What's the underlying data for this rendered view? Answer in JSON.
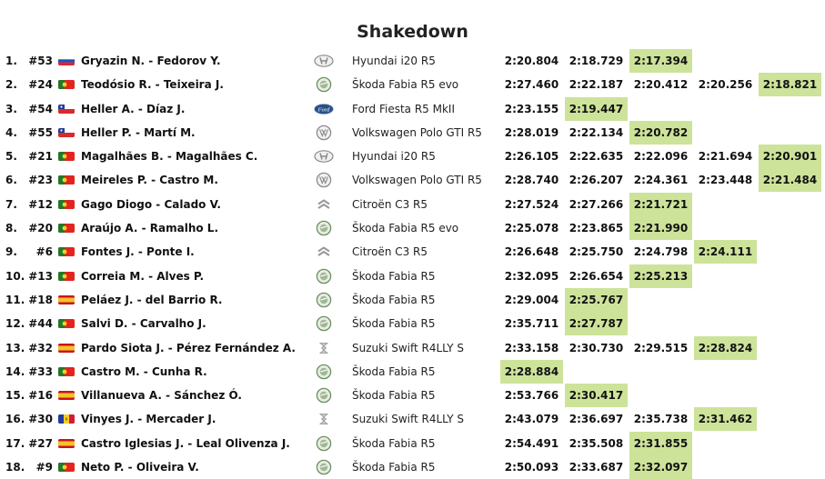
{
  "title": "Shakedown",
  "colors": {
    "best_time": "#cde39a"
  },
  "rows": [
    {
      "pos": "1.",
      "num": "#53",
      "flag": "russia",
      "crew": "Gryazin N. - Fedorov Y.",
      "brand": "hyundai",
      "car": "Hyundai i20 R5",
      "times": [
        "2:20.804",
        "2:18.729",
        "2:17.394"
      ],
      "best": 2
    },
    {
      "pos": "2.",
      "num": "#24",
      "flag": "portugal",
      "crew": "Teodósio R. - Teixeira J.",
      "brand": "skoda",
      "car": "Škoda Fabia R5 evo",
      "times": [
        "2:27.460",
        "2:22.187",
        "2:20.412",
        "2:20.256",
        "2:18.821"
      ],
      "best": 4
    },
    {
      "pos": "3.",
      "num": "#54",
      "flag": "chile",
      "crew": "Heller A. - Díaz J.",
      "brand": "ford",
      "car": "Ford Fiesta R5 MkII",
      "times": [
        "2:23.155",
        "2:19.447"
      ],
      "best": 1
    },
    {
      "pos": "4.",
      "num": "#55",
      "flag": "chile",
      "crew": "Heller P. - Martí M.",
      "brand": "volkswagen",
      "car": "Volkswagen Polo GTI R5",
      "times": [
        "2:28.019",
        "2:22.134",
        "2:20.782"
      ],
      "best": 2
    },
    {
      "pos": "5.",
      "num": "#21",
      "flag": "portugal",
      "crew": "Magalhães B. - Magalhães C.",
      "brand": "hyundai",
      "car": "Hyundai i20 R5",
      "times": [
        "2:26.105",
        "2:22.635",
        "2:22.096",
        "2:21.694",
        "2:20.901"
      ],
      "best": 4
    },
    {
      "pos": "6.",
      "num": "#23",
      "flag": "portugal",
      "crew": "Meireles P. - Castro M.",
      "brand": "volkswagen",
      "car": "Volkswagen Polo GTI R5",
      "times": [
        "2:28.740",
        "2:26.207",
        "2:24.361",
        "2:23.448",
        "2:21.484"
      ],
      "best": 4
    },
    {
      "pos": "7.",
      "num": "#12",
      "flag": "portugal",
      "crew": "Gago Diogo - Calado V.",
      "brand": "citroen",
      "car": "Citroën C3 R5",
      "times": [
        "2:27.524",
        "2:27.266",
        "2:21.721"
      ],
      "best": 2
    },
    {
      "pos": "8.",
      "num": "#20",
      "flag": "portugal",
      "crew": "Araújo A. - Ramalho L.",
      "brand": "skoda",
      "car": "Škoda Fabia R5 evo",
      "times": [
        "2:25.078",
        "2:23.865",
        "2:21.990"
      ],
      "best": 2
    },
    {
      "pos": "9.",
      "num": "#6",
      "flag": "portugal",
      "crew": "Fontes J. - Ponte I.",
      "brand": "citroen",
      "car": "Citroën C3 R5",
      "times": [
        "2:26.648",
        "2:25.750",
        "2:24.798",
        "2:24.111"
      ],
      "best": 3
    },
    {
      "pos": "10.",
      "num": "#13",
      "flag": "portugal",
      "crew": "Correia M. - Alves P.",
      "brand": "skoda",
      "car": "Škoda Fabia R5",
      "times": [
        "2:32.095",
        "2:26.654",
        "2:25.213"
      ],
      "best": 2
    },
    {
      "pos": "11.",
      "num": "#18",
      "flag": "spain",
      "crew": "Peláez J. - del Barrio R.",
      "brand": "skoda",
      "car": "Škoda Fabia R5",
      "times": [
        "2:29.004",
        "2:25.767"
      ],
      "best": 1
    },
    {
      "pos": "12.",
      "num": "#44",
      "flag": "portugal",
      "crew": "Salvi D. - Carvalho J.",
      "brand": "skoda",
      "car": "Škoda Fabia R5",
      "times": [
        "2:35.711",
        "2:27.787"
      ],
      "best": 1
    },
    {
      "pos": "13.",
      "num": "#32",
      "flag": "spain",
      "crew": "Pardo Siota J. - Pérez Fernández A.",
      "brand": "suzuki",
      "car": "Suzuki Swift R4LLY S",
      "times": [
        "2:33.158",
        "2:30.730",
        "2:29.515",
        "2:28.824"
      ],
      "best": 3
    },
    {
      "pos": "14.",
      "num": "#33",
      "flag": "portugal",
      "crew": "Castro M. - Cunha R.",
      "brand": "skoda",
      "car": "Škoda Fabia R5",
      "times": [
        "2:28.884"
      ],
      "best": 0
    },
    {
      "pos": "15.",
      "num": "#16",
      "flag": "spain",
      "crew": "Villanueva A. - Sánchez Ó.",
      "brand": "skoda",
      "car": "Škoda Fabia R5",
      "times": [
        "2:53.766",
        "2:30.417"
      ],
      "best": 1
    },
    {
      "pos": "16.",
      "num": "#30",
      "flag": "andorra",
      "crew": "Vinyes J. - Mercader J.",
      "brand": "suzuki",
      "car": "Suzuki Swift R4LLY S",
      "times": [
        "2:43.079",
        "2:36.697",
        "2:35.738",
        "2:31.462"
      ],
      "best": 3
    },
    {
      "pos": "17.",
      "num": "#27",
      "flag": "spain",
      "crew": "Castro Iglesias J. - Leal Olivenza J.",
      "brand": "skoda",
      "car": "Škoda Fabia R5",
      "times": [
        "2:54.491",
        "2:35.508",
        "2:31.855"
      ],
      "best": 2
    },
    {
      "pos": "18.",
      "num": "#9",
      "flag": "portugal",
      "crew": "Neto P. - Oliveira V.",
      "brand": "skoda",
      "car": "Škoda Fabia R5",
      "times": [
        "2:50.093",
        "2:33.687",
        "2:32.097"
      ],
      "best": 2
    }
  ]
}
